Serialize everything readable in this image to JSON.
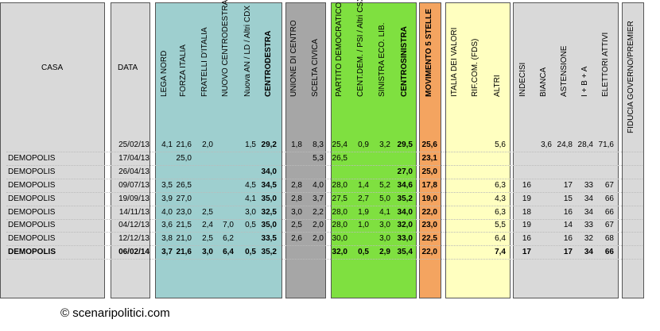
{
  "headers": {
    "casa": "CASA",
    "data": "DATA",
    "parties": [
      "LEGA NORD",
      "FORZA ITALIA",
      "FRATELLI D'ITALIA",
      "NUOVO CENTRODESTRA",
      "Nuova AN / LD / Altri CDX",
      "CENTRODESTRA",
      "UNIONE DI CENTRO",
      "SCELTA CIVICA",
      "PARTITO DEMOCRATICO",
      "CENT.DEM. / PSI / Altri CSX",
      "SINISTRA ECO. LIB.",
      "CENTROSINISTRA",
      "MOVIMENTO 5 STELLE",
      "ITALIA DEI VALORI",
      "RIF.COM. (FDS)",
      "ALTRI",
      "INDECISI",
      "BIANCA",
      "ASTENSIONE",
      "I + B + A",
      "ELETTORI ATTIVI",
      "FIDUCIA GOVERNO/PREMIER"
    ]
  },
  "colors": {
    "cdx": "#9ecfcf",
    "udc": "#a6a6a6",
    "csx": "#7fe040",
    "m5s": "#f4a460",
    "idv": "#ffffc0",
    "grey": "#d9d9d9"
  },
  "rows": [
    {
      "casa": "",
      "data": "25/02/13",
      "v": [
        "4,1",
        "21,6",
        "2,0",
        "",
        "1,5",
        "29,2",
        "1,8",
        "8,3",
        "25,4",
        "0,9",
        "3,2",
        "29,5",
        "25,6",
        "",
        "",
        "5,6",
        "",
        "3,6",
        "24,8",
        "28,4",
        "71,6",
        ""
      ],
      "bold": false
    },
    {
      "casa": "DEMOPOLIS",
      "data": "17/04/13",
      "v": [
        "",
        "25,0",
        "",
        "",
        "",
        "",
        "",
        "5,3",
        "26,5",
        "",
        "",
        "",
        "23,1",
        "",
        "",
        "",
        "",
        "",
        "",
        "",
        "",
        ""
      ],
      "bold": false
    },
    {
      "casa": "DEMOPOLIS",
      "data": "26/04/13",
      "v": [
        "",
        "",
        "",
        "",
        "",
        "34,0",
        "",
        "",
        "",
        "",
        "",
        "27,0",
        "25,0",
        "",
        "",
        "",
        "",
        "",
        "",
        "",
        "",
        ""
      ],
      "bold": false
    },
    {
      "casa": "DEMOPOLIS",
      "data": "09/07/13",
      "v": [
        "3,5",
        "26,5",
        "",
        "",
        "4,5",
        "34,5",
        "2,8",
        "4,0",
        "28,0",
        "1,4",
        "5,2",
        "34,6",
        "17,8",
        "",
        "",
        "6,3",
        "16",
        "",
        "17",
        "33",
        "67",
        ""
      ],
      "bold": false
    },
    {
      "casa": "DEMOPOLIS",
      "data": "19/09/13",
      "v": [
        "3,9",
        "27,0",
        "",
        "",
        "4,1",
        "35,0",
        "2,8",
        "3,7",
        "27,5",
        "2,7",
        "5,0",
        "35,2",
        "19,0",
        "",
        "",
        "4,3",
        "19",
        "",
        "15",
        "34",
        "66",
        ""
      ],
      "bold": false
    },
    {
      "casa": "DEMOPOLIS",
      "data": "14/11/13",
      "v": [
        "4,0",
        "23,0",
        "2,5",
        "",
        "3,0",
        "32,5",
        "3,0",
        "2,2",
        "28,0",
        "1,9",
        "4,1",
        "34,0",
        "22,0",
        "",
        "",
        "6,3",
        "18",
        "",
        "16",
        "34",
        "66",
        ""
      ],
      "bold": false
    },
    {
      "casa": "DEMOPOLIS",
      "data": "04/12/13",
      "v": [
        "3,6",
        "21,5",
        "2,4",
        "7,0",
        "0,5",
        "35,0",
        "2,5",
        "2,0",
        "28,0",
        "1,0",
        "3,0",
        "32,0",
        "23,0",
        "",
        "",
        "5,5",
        "19",
        "",
        "14",
        "33",
        "67",
        ""
      ],
      "bold": false
    },
    {
      "casa": "DEMOPOLIS",
      "data": "12/12/13",
      "v": [
        "3,8",
        "21,0",
        "2,5",
        "6,2",
        "",
        "33,5",
        "2,6",
        "2,0",
        "30,0",
        "",
        "3,0",
        "33,0",
        "22,5",
        "",
        "",
        "6,4",
        "16",
        "",
        "16",
        "32",
        "68",
        ""
      ],
      "bold": false
    },
    {
      "casa": "DEMOPOLIS",
      "data": "06/02/14",
      "v": [
        "3,7",
        "21,6",
        "3,0",
        "6,4",
        "0,5",
        "35,2",
        "",
        "",
        "32,0",
        "0,5",
        "2,9",
        "35,4",
        "22,0",
        "",
        "",
        "7,4",
        "17",
        "",
        "17",
        "34",
        "66",
        ""
      ],
      "bold": true
    }
  ],
  "copyright": "© scenaripolitici.com"
}
